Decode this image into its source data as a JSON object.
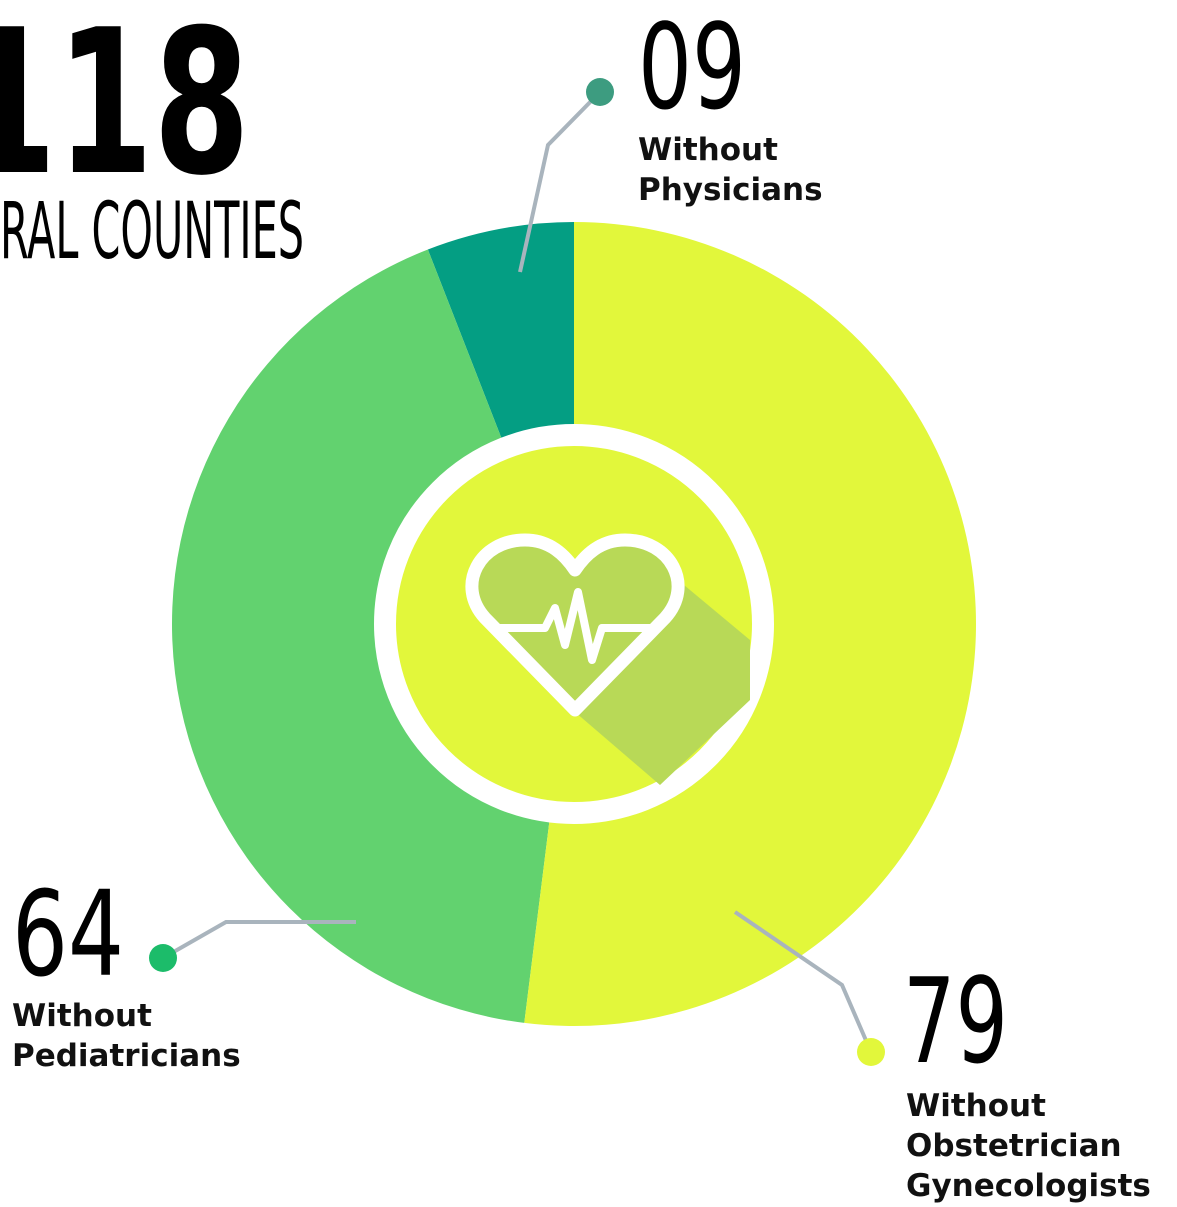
{
  "chart_data": {
    "type": "donut",
    "title": "118",
    "subtitle": "RAL COUNTIES",
    "categories": [
      "Without Physicians",
      "Without Pediatricians",
      "Without Obstetrician Gynecologists"
    ],
    "values": [
      9,
      64,
      79
    ],
    "value_labels": [
      "09",
      "64",
      "79"
    ],
    "colors": [
      "#049e83",
      "#62d26f",
      "#e2f73b"
    ]
  }
}
